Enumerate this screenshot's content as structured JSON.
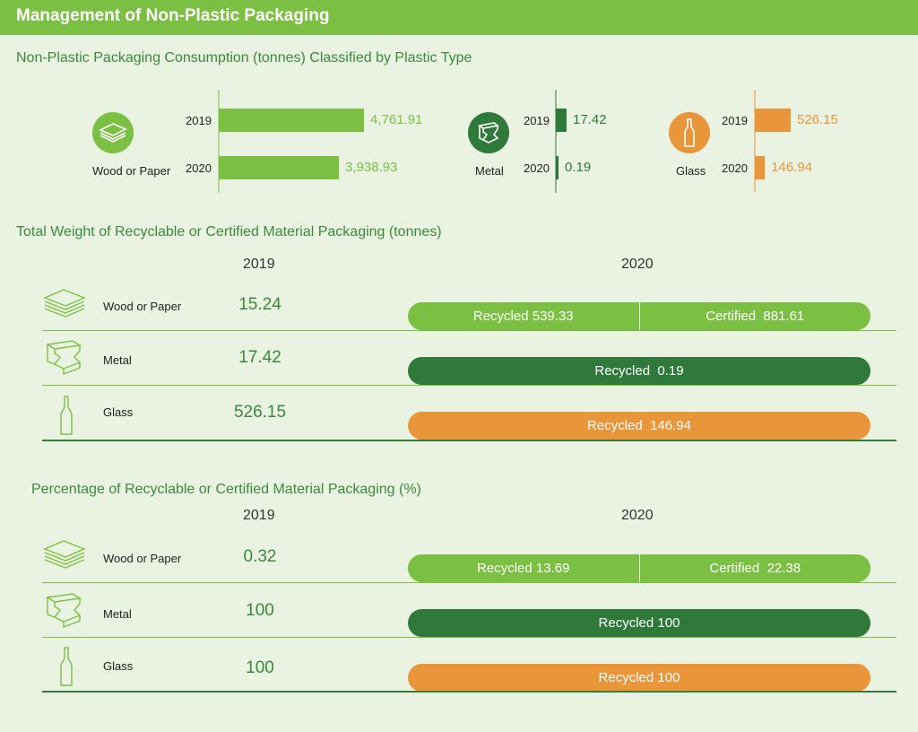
{
  "header": {
    "title": "Management of Non-Plastic Packaging"
  },
  "colors": {
    "light_green": "#7cc043",
    "dark_green": "#2f7a3a",
    "orange": "#e9963b"
  },
  "section1": {
    "title": "Non-Plastic Packaging Consumption (tonnes) Classified by Plastic Type",
    "groups": [
      {
        "label": "Wood or Paper",
        "icon": "paper-stack-icon",
        "color": "#7cc043",
        "rows": [
          {
            "year": "2019",
            "value_text": "4,761.91"
          },
          {
            "year": "2020",
            "value_text": "3,938.93"
          }
        ]
      },
      {
        "label": "Metal",
        "icon": "metal-beam-icon",
        "color": "#2f7a3a",
        "rows": [
          {
            "year": "2019",
            "value_text": "17.42"
          },
          {
            "year": "2020",
            "value_text": "0.19"
          }
        ]
      },
      {
        "label": "Glass",
        "icon": "bottle-icon",
        "color": "#e9963b",
        "rows": [
          {
            "year": "2019",
            "value_text": "526.15"
          },
          {
            "year": "2020",
            "value_text": "146.94"
          }
        ]
      }
    ]
  },
  "section2": {
    "title": "Total Weight of Recyclable or Certified Material Packaging (tonnes)",
    "col_2019": "2019",
    "col_2020": "2020",
    "rows": [
      {
        "label": "Wood or Paper",
        "icon": "paper-stack-icon",
        "v2019": "15.24",
        "segs": [
          "Recycled 539.33",
          "Certified  881.61"
        ]
      },
      {
        "label": "Metal",
        "icon": "metal-beam-icon",
        "v2019": "17.42",
        "segs": [
          "Recycled  0.19"
        ]
      },
      {
        "label": "Glass",
        "icon": "bottle-icon",
        "v2019": "526.15",
        "segs": [
          "Recycled  146.94"
        ]
      }
    ]
  },
  "section3": {
    "title": "Percentage of Recyclable or Certified Material Packaging (%)",
    "col_2019": "2019",
    "col_2020": "2020",
    "rows": [
      {
        "label": "Wood or Paper",
        "icon": "paper-stack-icon",
        "v2019": "0.32",
        "segs": [
          "Recycled 13.69",
          "Certified  22.38"
        ]
      },
      {
        "label": "Metal",
        "icon": "metal-beam-icon",
        "v2019": "100",
        "segs": [
          "Recycled 100"
        ]
      },
      {
        "label": "Glass",
        "icon": "bottle-icon",
        "v2019": "100",
        "segs": [
          "Recycled 100"
        ]
      }
    ]
  },
  "chart_data": [
    {
      "type": "bar",
      "title": "Non-Plastic Packaging Consumption (tonnes) Classified by Plastic Type",
      "orientation": "horizontal",
      "categories": [
        "Wood or Paper",
        "Metal",
        "Glass"
      ],
      "series": [
        {
          "name": "2019",
          "values": [
            4761.91,
            17.42,
            526.15
          ]
        },
        {
          "name": "2020",
          "values": [
            3938.93,
            0.19,
            146.94
          ]
        }
      ]
    },
    {
      "type": "table",
      "title": "Total Weight of Recyclable or Certified Material Packaging (tonnes)",
      "categories": [
        "Wood or Paper",
        "Metal",
        "Glass"
      ],
      "series": [
        {
          "name": "2019",
          "values": [
            15.24,
            17.42,
            526.15
          ]
        },
        {
          "name": "Recycled",
          "values": [
            539.33,
            0.19,
            146.94
          ]
        },
        {
          "name": "Certified",
          "values": [
            881.61,
            null,
            null
          ]
        }
      ]
    },
    {
      "type": "table",
      "title": "Percentage of Recyclable or Certified Material Packaging (%)",
      "categories": [
        "Wood or Paper",
        "Metal",
        "Glass"
      ],
      "series": [
        {
          "name": "2019",
          "values": [
            0.32,
            100,
            100
          ]
        },
        {
          "name": "Recycled",
          "values": [
            13.69,
            100,
            100
          ]
        },
        {
          "name": "Certified",
          "values": [
            22.38,
            null,
            null
          ]
        }
      ]
    }
  ]
}
